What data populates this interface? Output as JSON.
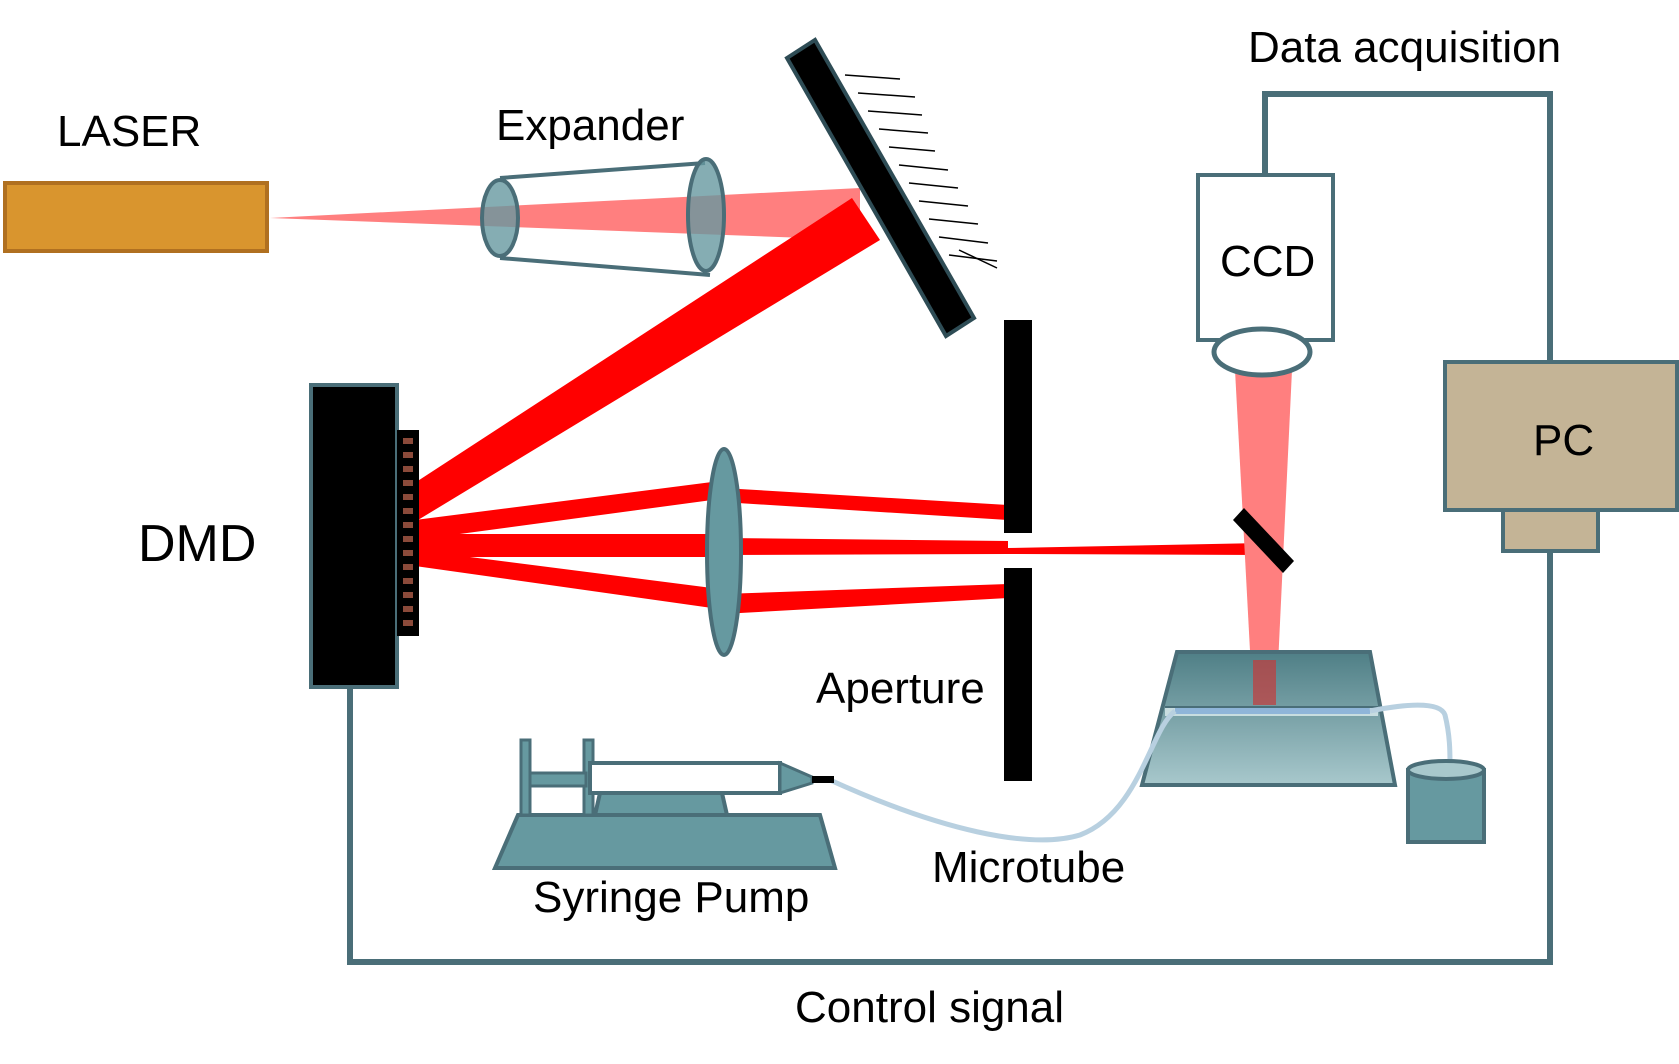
{
  "labels": {
    "laser": "LASER",
    "expander": "Expander",
    "dmd": "DMD",
    "aperture": "Aperture",
    "ccd": "CCD",
    "pc": "PC",
    "data_acquisition": "Data acquisition",
    "control_signal": "Control signal",
    "microtube": "Microtube",
    "syringe_pump": "Syringe Pump"
  },
  "colors": {
    "laser_body": "#D9952E",
    "beam": "#FF0000",
    "beam_light": "#FF7F7F",
    "teal": "#6699A0",
    "outline": "#4A6E78",
    "pc_box": "#C4B496",
    "black": "#000000"
  }
}
